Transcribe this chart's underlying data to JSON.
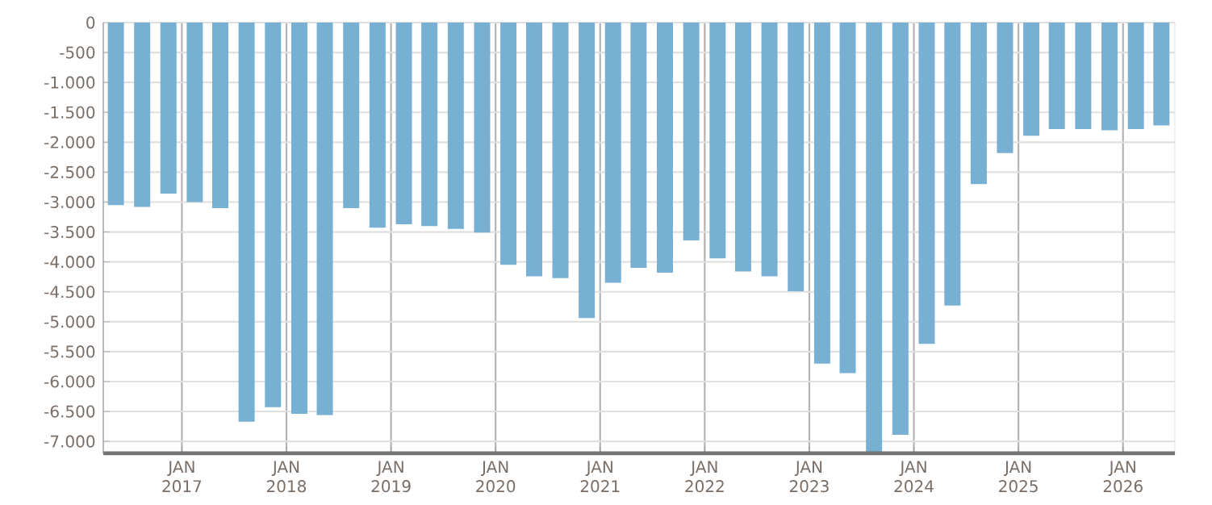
{
  "chart_data": {
    "type": "bar",
    "x": [
      "2016-05-15",
      "2016-08-15",
      "2016-11-15",
      "2017-02-15",
      "2017-05-15",
      "2017-08-15",
      "2017-11-15",
      "2018-02-15",
      "2018-05-15",
      "2018-08-15",
      "2018-11-15",
      "2019-02-15",
      "2019-05-15",
      "2019-08-15",
      "2019-11-15",
      "2020-02-15",
      "2020-05-15",
      "2020-08-15",
      "2020-11-15",
      "2021-02-15",
      "2021-05-15",
      "2021-08-15",
      "2021-11-15",
      "2022-02-15",
      "2022-05-15",
      "2022-08-15",
      "2022-11-15",
      "2023-02-15",
      "2023-05-15",
      "2023-08-15",
      "2023-11-15",
      "2024-02-15",
      "2024-05-15",
      "2024-08-15",
      "2024-11-15",
      "2025-02-15",
      "2025-05-15",
      "2025-08-15",
      "2025-11-15",
      "2026-02-15",
      "2026-05-15"
    ],
    "values": [
      -3050,
      -3080,
      -2860,
      -3000,
      -3100,
      -6670,
      -6430,
      -6540,
      -6560,
      -3100,
      -3430,
      -3370,
      -3400,
      -3450,
      -3510,
      -4050,
      -4240,
      -4270,
      -4940,
      -4350,
      -4100,
      -4180,
      -3640,
      -3940,
      -4160,
      -4240,
      -4490,
      -5700,
      -5860,
      -7200,
      -6890,
      -5370,
      -4730,
      -2700,
      -2180,
      -1890,
      -1780,
      -1780,
      -1800,
      -1780,
      -1720
    ],
    "color": "#77b0d2",
    "xlim": [
      "2016-04",
      "2026-07"
    ],
    "xticks": [
      {
        "value": "2017-01",
        "label": "JAN 2017"
      },
      {
        "value": "2018-01",
        "label": "JAN 2018"
      },
      {
        "value": "2019-01",
        "label": "JAN 2019"
      },
      {
        "value": "2020-01",
        "label": "JAN 2020"
      },
      {
        "value": "2021-01",
        "label": "JAN 2021"
      },
      {
        "value": "2022-01",
        "label": "JAN 2022"
      },
      {
        "value": "2023-01",
        "label": "JAN 2023"
      },
      {
        "value": "2024-01",
        "label": "JAN 2024"
      },
      {
        "value": "2025-01",
        "label": "JAN 2025"
      },
      {
        "value": "2026-01",
        "label": "JAN 2026"
      }
    ],
    "ylim": [
      -7200,
      0
    ],
    "yticks": [
      {
        "value": -7000,
        "label": "-7.000"
      },
      {
        "value": -6500,
        "label": "-6.500"
      },
      {
        "value": -6000,
        "label": "-6.000"
      },
      {
        "value": -5500,
        "label": "-5.500"
      },
      {
        "value": -5000,
        "label": "-5.000"
      },
      {
        "value": -4500,
        "label": "-4.500"
      },
      {
        "value": -4000,
        "label": "-4.000"
      },
      {
        "value": -3500,
        "label": "-3.500"
      },
      {
        "value": -3000,
        "label": "-3.000"
      },
      {
        "value": -2500,
        "label": "-2.500"
      },
      {
        "value": -2000,
        "label": "-2.000"
      },
      {
        "value": -1500,
        "label": "-1.500"
      },
      {
        "value": -1000,
        "label": "-1.000"
      },
      {
        "value": -500,
        "label": "-500"
      },
      0
    ],
    "grid": true
  }
}
